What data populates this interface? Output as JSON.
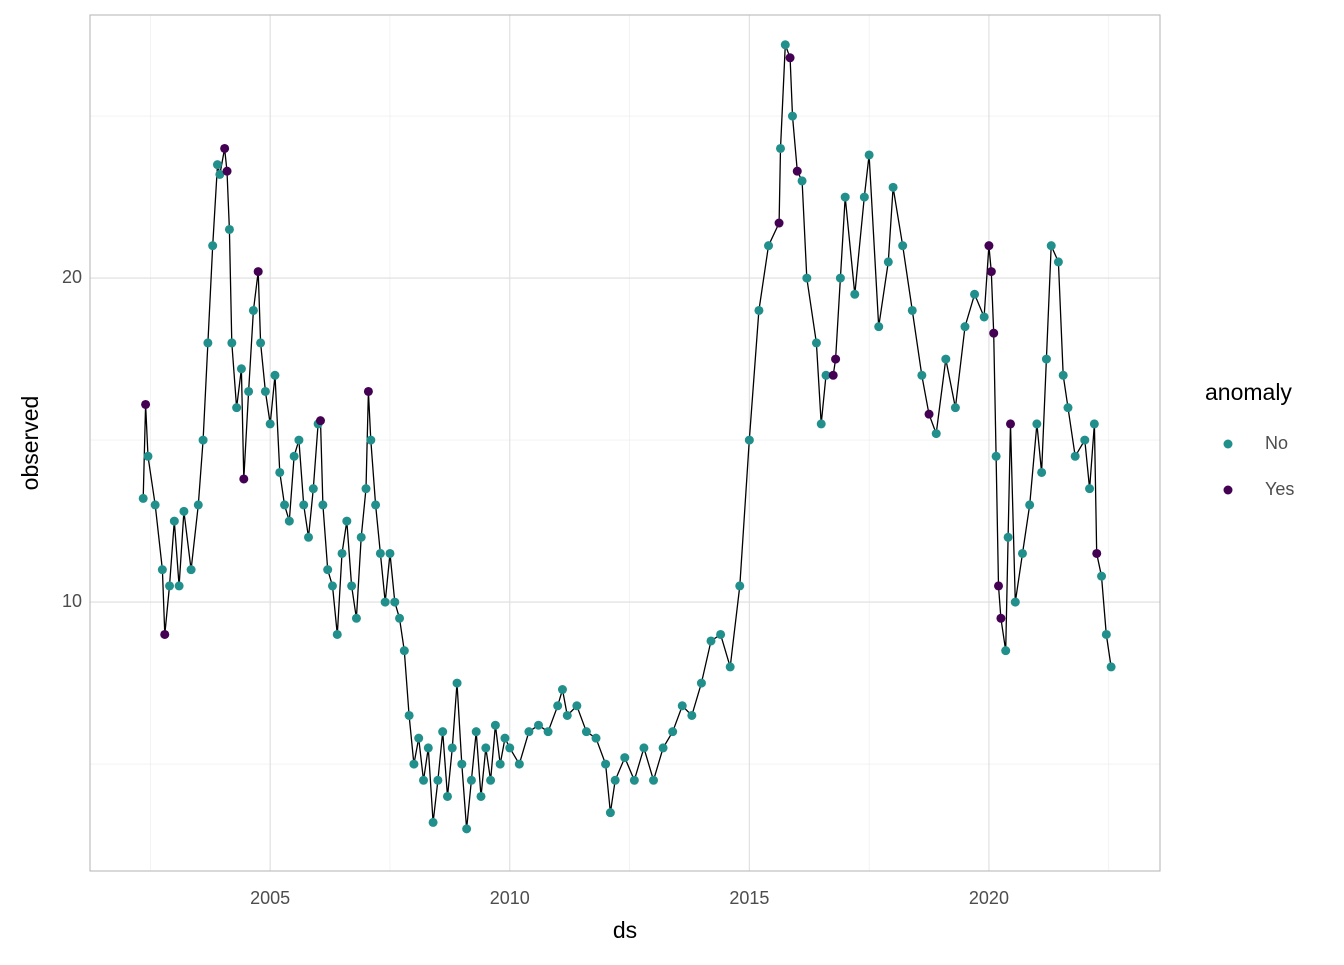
{
  "chart_data": {
    "type": "line-points",
    "x_label": "ds",
    "y_label": "observed",
    "legend_title": "anomaly",
    "series": [
      {
        "name": "No",
        "color": "#21908C"
      },
      {
        "name": "Yes",
        "color": "#440154"
      }
    ],
    "line_color": "#000000",
    "x": [
      2002.35,
      2002.4,
      2002.45,
      2002.6,
      2002.75,
      2002.8,
      2002.9,
      2003.0,
      2003.1,
      2003.2,
      2003.35,
      2003.5,
      2003.6,
      2003.7,
      2003.8,
      2003.9,
      2003.95,
      2004.05,
      2004.1,
      2004.15,
      2004.2,
      2004.3,
      2004.4,
      2004.45,
      2004.55,
      2004.65,
      2004.75,
      2004.8,
      2004.9,
      2005.0,
      2005.1,
      2005.2,
      2005.3,
      2005.4,
      2005.5,
      2005.6,
      2005.7,
      2005.8,
      2005.9,
      2006.0,
      2006.05,
      2006.1,
      2006.2,
      2006.3,
      2006.4,
      2006.5,
      2006.6,
      2006.7,
      2006.8,
      2006.9,
      2007.0,
      2007.05,
      2007.1,
      2007.2,
      2007.3,
      2007.4,
      2007.5,
      2007.6,
      2007.7,
      2007.8,
      2007.9,
      2008.0,
      2008.1,
      2008.2,
      2008.3,
      2008.4,
      2008.5,
      2008.6,
      2008.7,
      2008.8,
      2008.9,
      2009.0,
      2009.1,
      2009.2,
      2009.3,
      2009.4,
      2009.5,
      2009.6,
      2009.7,
      2009.8,
      2009.9,
      2010.0,
      2010.2,
      2010.4,
      2010.6,
      2010.8,
      2011.0,
      2011.1,
      2011.2,
      2011.4,
      2011.6,
      2011.8,
      2012.0,
      2012.1,
      2012.2,
      2012.4,
      2012.6,
      2012.8,
      2013.0,
      2013.2,
      2013.4,
      2013.6,
      2013.8,
      2014.0,
      2014.2,
      2014.4,
      2014.6,
      2014.8,
      2015.0,
      2015.2,
      2015.4,
      2015.62,
      2015.65,
      2015.75,
      2015.85,
      2015.9,
      2016.0,
      2016.1,
      2016.2,
      2016.4,
      2016.5,
      2016.6,
      2016.75,
      2016.8,
      2016.9,
      2017.0,
      2017.2,
      2017.4,
      2017.5,
      2017.7,
      2017.9,
      2018.0,
      2018.2,
      2018.4,
      2018.6,
      2018.75,
      2018.9,
      2019.1,
      2019.3,
      2019.5,
      2019.7,
      2019.9,
      2020.0,
      2020.05,
      2020.1,
      2020.15,
      2020.2,
      2020.25,
      2020.35,
      2020.4,
      2020.45,
      2020.55,
      2020.7,
      2020.85,
      2021.0,
      2021.1,
      2021.2,
      2021.3,
      2021.45,
      2021.55,
      2021.65,
      2021.8,
      2022.0,
      2022.1,
      2022.2,
      2022.25,
      2022.35,
      2022.45,
      2022.55
    ],
    "values": [
      13.2,
      16.1,
      14.5,
      13.0,
      11.0,
      9.0,
      10.5,
      12.5,
      10.5,
      12.8,
      11.0,
      13.0,
      15.0,
      18.0,
      21.0,
      23.5,
      23.2,
      24.0,
      23.3,
      21.5,
      18.0,
      16.0,
      17.2,
      13.8,
      16.5,
      19.0,
      20.2,
      18.0,
      16.5,
      15.5,
      17.0,
      14.0,
      13.0,
      12.5,
      14.5,
      15.0,
      13.0,
      12.0,
      13.5,
      15.5,
      15.6,
      13.0,
      11.0,
      10.5,
      9.0,
      11.5,
      12.5,
      10.5,
      9.5,
      12.0,
      13.5,
      16.5,
      15.0,
      13.0,
      11.5,
      10.0,
      11.5,
      10.0,
      9.5,
      8.5,
      6.5,
      5.0,
      5.8,
      4.5,
      5.5,
      3.2,
      4.5,
      6.0,
      4.0,
      5.5,
      7.5,
      5.0,
      3.0,
      4.5,
      6.0,
      4.0,
      5.5,
      4.5,
      6.2,
      5.0,
      5.8,
      5.5,
      5.0,
      6.0,
      6.2,
      6.0,
      6.8,
      7.3,
      6.5,
      6.8,
      6.0,
      5.8,
      5.0,
      3.5,
      4.5,
      5.2,
      4.5,
      5.5,
      4.5,
      5.5,
      6.0,
      6.8,
      6.5,
      7.5,
      8.8,
      9.0,
      8.0,
      10.5,
      15.0,
      19.0,
      21.0,
      21.7,
      24.0,
      27.2,
      26.8,
      25.0,
      23.3,
      23.0,
      20.0,
      18.0,
      15.5,
      17.0,
      17.0,
      17.5,
      20.0,
      22.5,
      19.5,
      22.5,
      23.8,
      18.5,
      20.5,
      22.8,
      21.0,
      19.0,
      17.0,
      15.8,
      15.2,
      17.5,
      16.0,
      18.5,
      19.5,
      18.8,
      21.0,
      20.2,
      18.3,
      14.5,
      10.5,
      9.5,
      8.5,
      12.0,
      15.5,
      10.0,
      11.5,
      13.0,
      15.5,
      14.0,
      17.5,
      21.0,
      20.5,
      17.0,
      16.0,
      14.5,
      15.0,
      13.5,
      15.5,
      11.5,
      10.8,
      9.0,
      8.0
    ],
    "anomaly": [
      false,
      true,
      false,
      false,
      false,
      true,
      false,
      false,
      false,
      false,
      false,
      false,
      false,
      false,
      false,
      false,
      false,
      true,
      true,
      false,
      false,
      false,
      false,
      true,
      false,
      false,
      true,
      false,
      false,
      false,
      false,
      false,
      false,
      false,
      false,
      false,
      false,
      false,
      false,
      false,
      true,
      false,
      false,
      false,
      false,
      false,
      false,
      false,
      false,
      false,
      false,
      true,
      false,
      false,
      false,
      false,
      false,
      false,
      false,
      false,
      false,
      false,
      false,
      false,
      false,
      false,
      false,
      false,
      false,
      false,
      false,
      false,
      false,
      false,
      false,
      false,
      false,
      false,
      false,
      false,
      false,
      false,
      false,
      false,
      false,
      false,
      false,
      false,
      false,
      false,
      false,
      false,
      false,
      false,
      false,
      false,
      false,
      false,
      false,
      false,
      false,
      false,
      false,
      false,
      false,
      false,
      false,
      false,
      false,
      false,
      false,
      true,
      false,
      false,
      true,
      false,
      true,
      false,
      false,
      false,
      false,
      false,
      true,
      true,
      false,
      false,
      false,
      false,
      false,
      false,
      false,
      false,
      false,
      false,
      false,
      true,
      false,
      false,
      false,
      false,
      false,
      false,
      true,
      true,
      true,
      false,
      true,
      true,
      false,
      false,
      true,
      false,
      false,
      false,
      false,
      false,
      false,
      false,
      false,
      false,
      false,
      false,
      false,
      false,
      false,
      true,
      false,
      false,
      false
    ],
    "xlim": [
      2001.24,
      2023.57
    ],
    "ylim": [
      1.7,
      28.12
    ],
    "xticks": [
      2005,
      2010,
      2015,
      2020
    ],
    "yticks": [
      10,
      20
    ],
    "x_minor_ticks": [
      2002.5,
      2007.5,
      2012.5,
      2017.5,
      2022.5
    ],
    "y_minor_ticks": [
      5,
      15,
      25
    ],
    "grid": true
  }
}
